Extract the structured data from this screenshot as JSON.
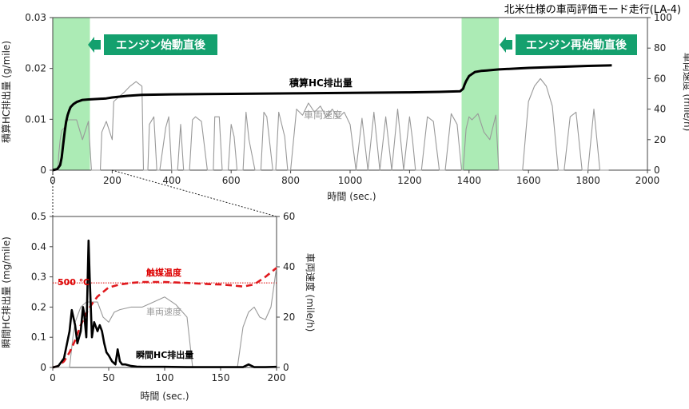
{
  "chart_data": [
    {
      "type": "line",
      "title": "北米仕様の車両評価モード走行(LA-4)",
      "xlabel": "時間 (sec.)",
      "ylabel_left": "積算HC排出量 (g/mile)",
      "ylabel_right": "車両速度 (mile/h)",
      "xlim": [
        0,
        2000
      ],
      "ylim_left": [
        0,
        0.03
      ],
      "ylim_right": [
        0,
        100
      ],
      "xticks": [
        "0",
        "200",
        "400",
        "600",
        "800",
        "1000",
        "1200",
        "1400",
        "1600",
        "1800",
        "2000"
      ],
      "yticks_left": [
        "0",
        "0.01",
        "0.02",
        "0.03"
      ],
      "yticks_right": [
        "0",
        "20",
        "40",
        "60",
        "80",
        "100"
      ],
      "highlights": [
        {
          "x": [
            0,
            125
          ],
          "label": "エンジン始動直後",
          "color": "#9ee8a8"
        },
        {
          "x": [
            1375,
            1500
          ],
          "label": "エンジン再始動直後",
          "color": "#9ee8a8"
        }
      ],
      "series": [
        {
          "name": "積算HC排出量",
          "axis": "left",
          "color": "#000000",
          "x": [
            0,
            15,
            25,
            30,
            35,
            40,
            45,
            50,
            55,
            60,
            70,
            80,
            100,
            120,
            150,
            180,
            200,
            250,
            300,
            400,
            600,
            800,
            1000,
            1200,
            1300,
            1370,
            1380,
            1385,
            1390,
            1400,
            1420,
            1440,
            1460,
            1500,
            1600,
            1700,
            1800,
            1880
          ],
          "y": [
            0,
            0.0002,
            0.001,
            0.0025,
            0.005,
            0.0075,
            0.0095,
            0.0108,
            0.0117,
            0.0124,
            0.013,
            0.0134,
            0.0138,
            0.0139,
            0.014,
            0.0141,
            0.0143,
            0.0146,
            0.0148,
            0.0149,
            0.015,
            0.0151,
            0.0152,
            0.0153,
            0.0154,
            0.0155,
            0.016,
            0.0168,
            0.0175,
            0.0185,
            0.0193,
            0.0195,
            0.0196,
            0.0198,
            0.0201,
            0.0203,
            0.0205,
            0.0206
          ]
        },
        {
          "name": "車両速度",
          "axis": "right",
          "color": "#999999",
          "x": [
            0,
            18,
            20,
            25,
            30,
            40,
            45,
            50,
            80,
            100,
            120,
            130,
            140,
            150,
            160,
            165,
            180,
            200,
            205,
            240,
            260,
            280,
            300,
            305,
            320,
            325,
            340,
            350,
            360,
            380,
            390,
            400,
            420,
            430,
            440,
            460,
            470,
            480,
            500,
            520,
            540,
            545,
            560,
            570,
            590,
            600,
            610,
            620,
            640,
            650,
            660,
            680,
            700,
            710,
            720,
            740,
            750,
            760,
            780,
            790,
            800,
            820,
            840,
            860,
            880,
            900,
            920,
            940,
            960,
            980,
            1000,
            1020,
            1040,
            1060,
            1080,
            1100,
            1120,
            1140,
            1160,
            1180,
            1200,
            1210,
            1220,
            1240,
            1260,
            1280,
            1300,
            1320,
            1340,
            1360,
            1375,
            1380,
            1390,
            1400,
            1410,
            1430,
            1450,
            1470,
            1490,
            1500,
            1520,
            1540,
            1560,
            1580,
            1600,
            1620,
            1640,
            1660,
            1680,
            1700,
            1720,
            1740,
            1760,
            1780,
            1800,
            1820,
            1840,
            1860,
            1870
          ],
          "y": [
            0,
            0,
            10,
            20,
            26,
            28,
            30,
            33,
            33,
            20,
            32,
            0,
            0,
            0,
            0,
            25,
            32,
            20,
            45,
            51,
            55,
            58,
            55,
            0,
            0,
            30,
            35,
            0,
            0,
            28,
            35,
            0,
            0,
            30,
            0,
            0,
            33,
            35,
            32,
            0,
            0,
            35,
            35,
            0,
            0,
            30,
            22,
            0,
            0,
            38,
            20,
            0,
            0,
            38,
            35,
            0,
            0,
            38,
            22,
            0,
            0,
            40,
            36,
            44,
            38,
            42,
            35,
            40,
            34,
            38,
            30,
            0,
            34,
            0,
            38,
            0,
            35,
            0,
            40,
            0,
            35,
            20,
            0,
            0,
            35,
            32,
            0,
            0,
            37,
            30,
            0,
            0,
            27,
            35,
            33,
            37,
            25,
            20,
            36,
            0,
            0,
            0,
            0,
            0,
            45,
            55,
            60,
            55,
            42,
            0,
            0,
            35,
            38,
            0,
            0,
            40,
            0,
            0,
            0
          ],
          "annotation": "車両速度"
        }
      ]
    },
    {
      "type": "line",
      "title": "",
      "xlabel": "時間 (sec.)",
      "ylabel_left": "瞬間HC排出量 (mg/mile)",
      "ylabel_right": "車両速度 (mile/h)",
      "xlim": [
        0,
        200
      ],
      "ylim_left": [
        0,
        0.5
      ],
      "ylim_right": [
        0,
        60
      ],
      "xticks": [
        "0",
        "50",
        "100",
        "150",
        "200"
      ],
      "yticks_left": [
        "0",
        "0.1",
        "0.2",
        "0.3",
        "0.4",
        "0.5"
      ],
      "yticks_right": [
        "0",
        "20",
        "40",
        "60"
      ],
      "reference_line": {
        "y": 0.28,
        "label": "500 ℃",
        "color": "#dd0000"
      },
      "series": [
        {
          "name": "瞬間HC排出量",
          "axis": "left",
          "color": "#000000",
          "x": [
            0,
            5,
            10,
            15,
            17,
            20,
            22,
            25,
            27,
            28,
            30,
            32,
            33,
            35,
            37,
            40,
            42,
            44,
            46,
            48,
            50,
            53,
            56,
            58,
            60,
            62,
            65,
            70,
            75,
            80,
            90,
            100,
            120,
            150,
            170,
            175,
            180,
            190,
            200
          ],
          "y": [
            0,
            0.005,
            0.03,
            0.12,
            0.19,
            0.14,
            0.08,
            0.12,
            0.2,
            0.18,
            0.1,
            0.42,
            0.3,
            0.1,
            0.15,
            0.12,
            0.14,
            0.12,
            0.08,
            0.05,
            0.04,
            0.02,
            0.01,
            0.06,
            0.02,
            0.01,
            0.01,
            0.005,
            0.003,
            0.002,
            0.002,
            0.002,
            0.001,
            0.001,
            0.001,
            0.01,
            0.001,
            0.001,
            0.002
          ]
        },
        {
          "name": "触媒温度",
          "axis": "left",
          "color": "#e0191e",
          "x": [
            0,
            5,
            10,
            15,
            20,
            25,
            30,
            35,
            40,
            45,
            50,
            60,
            70,
            80,
            100,
            120,
            140,
            150,
            160,
            170,
            180,
            190,
            200
          ],
          "y": [
            0.0,
            0.005,
            0.02,
            0.05,
            0.09,
            0.14,
            0.18,
            0.21,
            0.235,
            0.25,
            0.265,
            0.275,
            0.28,
            0.283,
            0.283,
            0.28,
            0.276,
            0.275,
            0.272,
            0.268,
            0.275,
            0.3,
            0.33
          ]
        },
        {
          "name": "車両速度",
          "axis": "right",
          "color": "#999999",
          "x": [
            0,
            15,
            18,
            20,
            25,
            30,
            40,
            45,
            50,
            55,
            60,
            70,
            80,
            90,
            100,
            110,
            120,
            125,
            130,
            140,
            150,
            160,
            165,
            170,
            175,
            180,
            185,
            190,
            195,
            200
          ],
          "y": [
            0,
            0,
            12,
            18,
            24,
            26,
            26,
            20,
            18,
            22,
            23,
            24,
            24,
            26,
            28,
            25,
            20,
            0,
            0,
            0,
            0,
            0,
            0,
            16,
            22,
            24,
            20,
            19,
            24,
            40
          ],
          "annotation": "車両速度"
        }
      ]
    }
  ]
}
